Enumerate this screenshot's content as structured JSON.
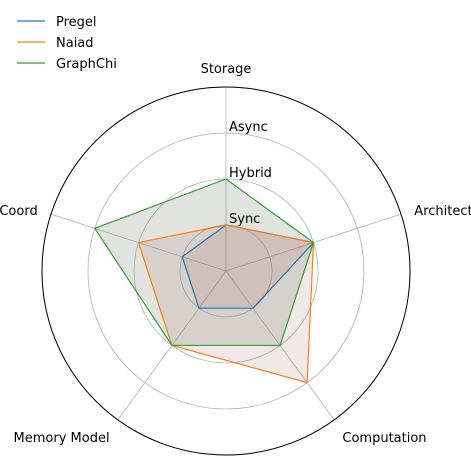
{
  "chart_data": {
    "type": "radar",
    "axes": [
      "Storage",
      "Architecture",
      "Computation",
      "Memory Model",
      "Coord"
    ],
    "rings": [
      1,
      2,
      3,
      4
    ],
    "ring_labels": [
      "Sync",
      "Hybrid",
      "Async"
    ],
    "rmax": 4,
    "series": [
      {
        "name": "Pregel",
        "color": "#1f77b4",
        "fill": "#d62728",
        "fill_opacity": 0.13,
        "values": [
          1,
          2,
          1,
          1,
          1
        ]
      },
      {
        "name": "Naiad",
        "color": "#ff7f0e",
        "fill": "#8c564b",
        "fill_opacity": 0.13,
        "values": [
          1,
          2,
          3,
          2,
          2
        ]
      },
      {
        "name": "GraphChi",
        "color": "#2ca02c",
        "fill": "#e377c2",
        "fill_opacity": 0.13,
        "values": [
          2,
          2,
          2,
          2,
          3
        ]
      }
    ],
    "fill_overrides": [
      {
        "series": "GraphChi",
        "color": "#2ca02c",
        "opacity": 0.12
      }
    ],
    "legend_position": "top-left",
    "grid": true
  }
}
